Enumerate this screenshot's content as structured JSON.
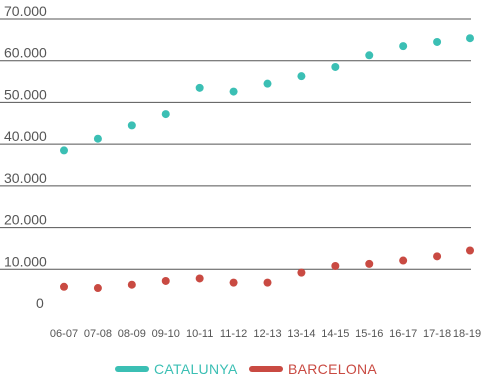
{
  "chart_data": {
    "type": "scatter",
    "title": "",
    "xlabel": "",
    "ylabel": "",
    "categories": [
      "06-07",
      "07-08",
      "08-09",
      "09-10",
      "10-11",
      "11-12",
      "12-13",
      "13-14",
      "14-15",
      "15-16",
      "16-17",
      "17-18",
      "18-19"
    ],
    "y_ticks": [
      "0",
      "10.000",
      "20.000",
      "30.000",
      "40.000",
      "50.000",
      "60.000",
      "70.000"
    ],
    "ylim": [
      0,
      70000
    ],
    "grid": "horizontal",
    "legend_position": "bottom",
    "series": [
      {
        "name": "CATALUNYA",
        "color": "#3bbfb4",
        "values": [
          38500,
          41300,
          44500,
          47200,
          53500,
          52600,
          54500,
          56300,
          58500,
          61300,
          63500,
          64500,
          65400
        ]
      },
      {
        "name": "BARCELONA",
        "color": "#c94a42",
        "values": [
          5800,
          5500,
          6300,
          7200,
          7800,
          6800,
          6800,
          9200,
          10800,
          11300,
          12100,
          13100,
          14500
        ]
      }
    ]
  }
}
